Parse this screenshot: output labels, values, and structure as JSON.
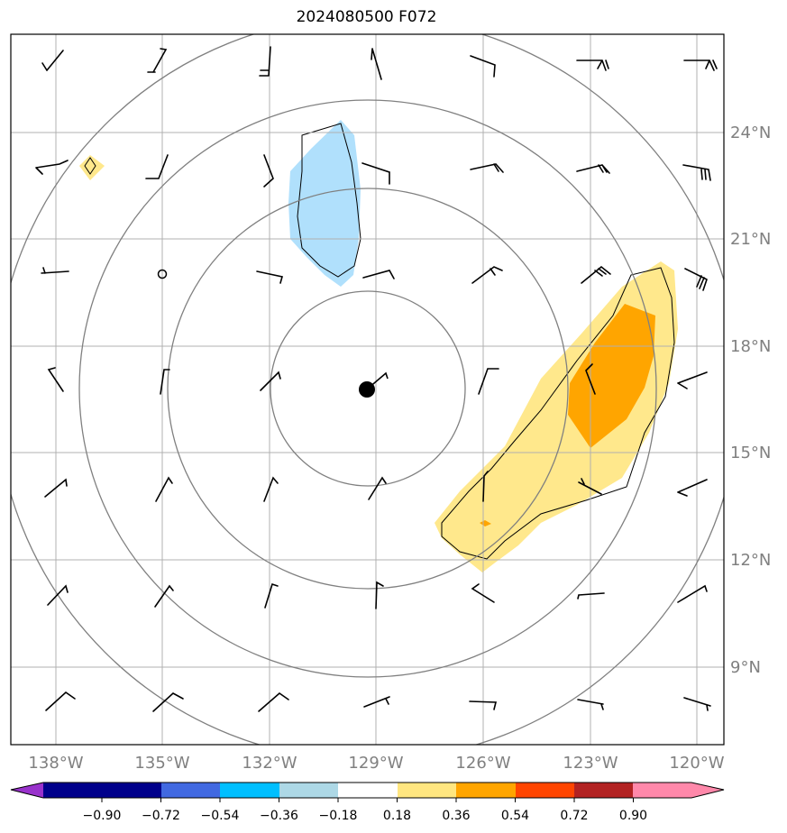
{
  "title": "2024080500 F072",
  "lon_labels": [
    "138°W",
    "135°W",
    "132°W",
    "129°W",
    "126°W",
    "123°W",
    "120°W"
  ],
  "lat_labels": [
    "24°N",
    "21°N",
    "18°N",
    "15°N",
    "12°N",
    "9°N"
  ],
  "colorbar": {
    "ticks": [
      "−0.90",
      "−0.72",
      "−0.54",
      "−0.36",
      "−0.18",
      "0.18",
      "0.36",
      "0.54",
      "0.72",
      "0.90"
    ],
    "colors": [
      "#9932cc",
      "#00008b",
      "#4169e1",
      "#00bfff",
      "#add8e6",
      "#ffffff",
      "#ffe680",
      "#ffa500",
      "#ff4500",
      "#b22222",
      "#ff88aa"
    ]
  },
  "field_colors": {
    "light_blue": "#b0e0fc",
    "light_yellow": "#ffe88c",
    "orange": "#ffa500"
  },
  "storm_center": {
    "lon": "129°W",
    "lat": "17°N"
  }
}
